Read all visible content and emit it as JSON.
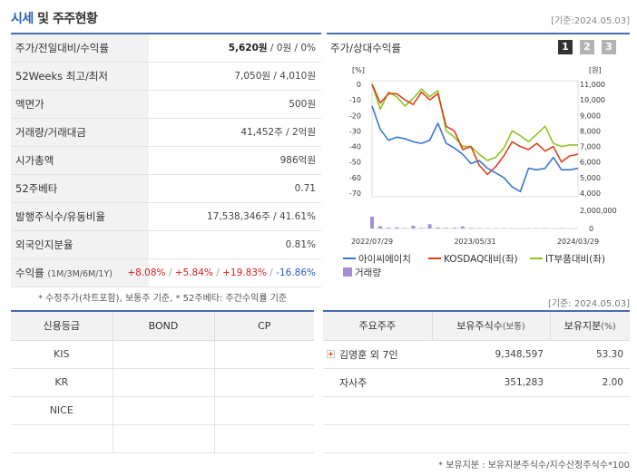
{
  "header": {
    "title_accent": "시세",
    "title_rest": " 및 주주현황",
    "date": "[기준:2024.05.03]"
  },
  "price_table": [
    {
      "label": "주가/전일대비/수익률",
      "value_main": "5,620원",
      "value_rest": " / 0원 / 0%"
    },
    {
      "label": "52Weeks 최고/최저",
      "value": "7,050원 / 4,010원"
    },
    {
      "label": "액면가",
      "value": "500원"
    },
    {
      "label": "거래량/거래대금",
      "value": "41,452주 / 2억원"
    },
    {
      "label": "시가총액",
      "value": "986억원"
    },
    {
      "label": "52주베타",
      "value": "0.71"
    },
    {
      "label": "발행주식수/유동비율",
      "value": "17,538,346주 / 41.61%"
    },
    {
      "label": "외국인지분율",
      "value": "0.81%"
    },
    {
      "label": "수익률",
      "label_sub": "(1M/3M/6M/1Y)",
      "r1": "+8.08%",
      "r2": "+5.84%",
      "r3": "+19.83%",
      "r4": "-16.86%"
    }
  ],
  "footnote1": "* 수정주가(차트포함), 보통주 기준, * 52주베타: 주간수익률 기준",
  "chart_panel": {
    "title": "주가/상대수익률",
    "pages": [
      "1",
      "2",
      "3"
    ],
    "active_page": "1",
    "legend": [
      {
        "label": "아이씨에이치",
        "color": "#3a75d3"
      },
      {
        "label": "KOSDAQ대비(좌)",
        "color": "#d9411e"
      },
      {
        "label": "IT부품대비(좌)",
        "color": "#8fc31f"
      },
      {
        "label": "거래량",
        "color": "#a58fd6"
      }
    ]
  },
  "chart_data": {
    "type": "line",
    "left_axis": {
      "unit": "[%]",
      "ticks": [
        0,
        -10,
        -20,
        -30,
        -40,
        -50,
        -60,
        -70
      ]
    },
    "right_axis": {
      "unit": "[원]",
      "ticks": [
        "11,000",
        "10,000",
        "9,000",
        "8,000",
        "7,000",
        "6,000",
        "5,000",
        "4,000"
      ],
      "min": 4000,
      "max": 11000
    },
    "volume_axis": {
      "ticks": [
        "2,000,000",
        "0"
      ],
      "max": 2000000
    },
    "x_labels": [
      "2022/07/29",
      "2023/05/31",
      "2024/03/29"
    ],
    "price_series": {
      "name": "아이씨에이치",
      "values": [
        9600,
        8100,
        7400,
        7600,
        7500,
        7300,
        7200,
        7400,
        8500,
        7200,
        6900,
        6500,
        5900,
        6100,
        5600,
        5300,
        5000,
        4400,
        4100,
        5600,
        5500,
        5600,
        6300,
        5500,
        5500,
        5600
      ]
    },
    "kosdaq_series": {
      "name": "KOSDAQ대비(좌)",
      "values": [
        0,
        -12,
        -6,
        -6,
        -10,
        -13,
        -5,
        -10,
        -6,
        -27,
        -30,
        -42,
        -40,
        -52,
        -58,
        -53,
        -46,
        -37,
        -40,
        -42,
        -38,
        -43,
        -40,
        -50,
        -46,
        -45
      ]
    },
    "it_series": {
      "name": "IT부품대비(좌)",
      "values": [
        0,
        -16,
        -5,
        -8,
        -14,
        -9,
        -3,
        -8,
        -4,
        -30,
        -34,
        -40,
        -40,
        -45,
        -49,
        -47,
        -41,
        -30,
        -33,
        -37,
        -32,
        -27,
        -38,
        -40,
        -39,
        -39
      ]
    },
    "volume": [
      1300000,
      250000,
      80000,
      120000,
      40000,
      300000,
      60000,
      480000,
      100000,
      80000,
      90000,
      220000,
      50000,
      30000,
      20000,
      25000,
      40000,
      20000,
      15000,
      25000,
      30000,
      25000,
      20000,
      40000,
      15000,
      10000
    ]
  },
  "date2": "[기준: 2024.05.03]",
  "credit_table": {
    "headers": [
      "신용등급",
      "BOND",
      "CP"
    ],
    "rows": [
      [
        "KIS",
        "",
        ""
      ],
      [
        "KR",
        "",
        ""
      ],
      [
        "NICE",
        "",
        ""
      ],
      [
        "",
        "",
        ""
      ]
    ]
  },
  "holders_table": {
    "headers": [
      "주요주주",
      "보유주식수",
      "(보통)",
      "보유지분",
      "(%)"
    ],
    "rows": [
      {
        "name": "김영훈 외 7인",
        "shares": "9,348,597",
        "pct": "53.30"
      },
      {
        "name": "자사주",
        "shares": "351,283",
        "pct": "2.00"
      },
      {
        "name": "",
        "shares": "",
        "pct": ""
      },
      {
        "name": "",
        "shares": "",
        "pct": ""
      }
    ]
  },
  "footnote2": "* 보유지분 : 보유지분주식수/지수산정주식수*100"
}
